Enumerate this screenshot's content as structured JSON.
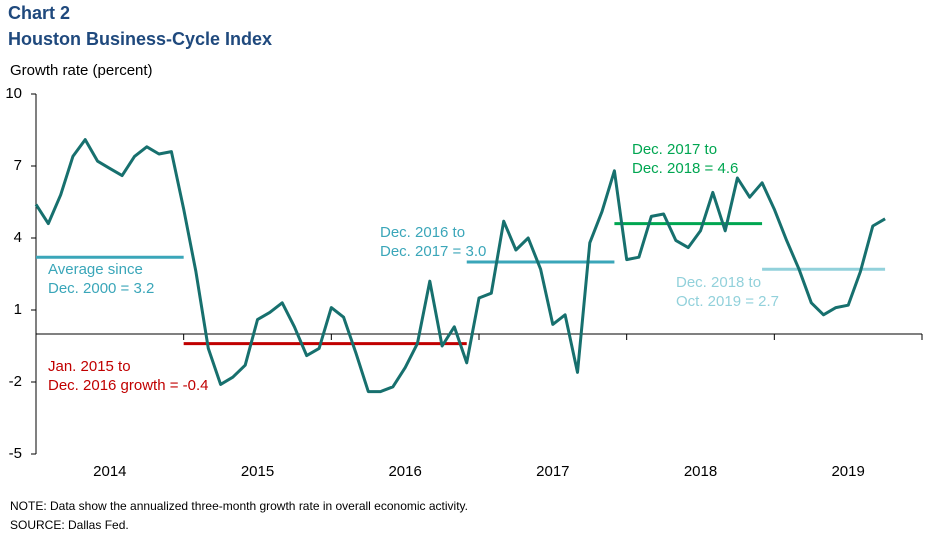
{
  "chart_data": {
    "type": "line",
    "title": "Chart 2",
    "subtitle": "Houston Business-Cycle Index",
    "y_axis_label": "Growth rate (percent)",
    "ylim": [
      -5,
      10
    ],
    "yticks": [
      10,
      7,
      4,
      1,
      -2,
      -5
    ],
    "xlim": [
      2014,
      2020
    ],
    "xticks": [
      {
        "value": 2014.5,
        "label": "2014"
      },
      {
        "value": 2015.5,
        "label": "2015"
      },
      {
        "value": 2016.5,
        "label": "2016"
      },
      {
        "value": 2017.5,
        "label": "2017"
      },
      {
        "value": 2018.5,
        "label": "2018"
      },
      {
        "value": 2019.5,
        "label": "2019"
      }
    ],
    "x": [
      2014,
      2014.083,
      2014.167,
      2014.25,
      2014.333,
      2014.417,
      2014.5,
      2014.583,
      2014.667,
      2014.75,
      2014.833,
      2014.917,
      2015,
      2015.083,
      2015.167,
      2015.25,
      2015.333,
      2015.417,
      2015.5,
      2015.583,
      2015.667,
      2015.75,
      2015.833,
      2015.917,
      2016,
      2016.083,
      2016.167,
      2016.25,
      2016.333,
      2016.417,
      2016.5,
      2016.583,
      2016.667,
      2016.75,
      2016.833,
      2016.917,
      2017,
      2017.083,
      2017.167,
      2017.25,
      2017.333,
      2017.417,
      2017.5,
      2017.583,
      2017.667,
      2017.75,
      2017.833,
      2017.917,
      2018,
      2018.083,
      2018.167,
      2018.25,
      2018.333,
      2018.417,
      2018.5,
      2018.583,
      2018.667,
      2018.75,
      2018.833,
      2018.917,
      2019,
      2019.083,
      2019.167,
      2019.25,
      2019.333,
      2019.417,
      2019.5,
      2019.583,
      2019.667,
      2019.75
    ],
    "series": [
      {
        "color": "#17706e",
        "values": [
          5.4,
          4.6,
          5.8,
          7.4,
          8.1,
          7.2,
          6.9,
          6.6,
          7.4,
          7.8,
          7.5,
          7.6,
          5.2,
          2.6,
          -0.6,
          -2.1,
          -1.8,
          -1.3,
          0.6,
          0.9,
          1.3,
          0.3,
          -0.9,
          -0.6,
          1.1,
          0.7,
          -0.8,
          -2.4,
          -2.4,
          -2.2,
          -1.4,
          -0.4,
          2.2,
          -0.5,
          0.3,
          -1.2,
          1.5,
          1.7,
          4.7,
          3.5,
          4.0,
          2.7,
          0.4,
          0.8,
          -1.6,
          3.8,
          5.1,
          6.8,
          3.1,
          3.2,
          4.9,
          5.0,
          3.9,
          3.6,
          4.3,
          5.9,
          4.3,
          6.5,
          5.7,
          6.3,
          5.2,
          3.9,
          2.7,
          1.3,
          0.8,
          1.1,
          1.2,
          2.6,
          4.5,
          4.8
        ]
      }
    ],
    "segments": [
      {
        "value": 3.2,
        "x": [
          2014,
          2015
        ],
        "color": "#3aa6b9",
        "label": [
          "Average since",
          "Dec. 2000 = 3.2"
        ]
      },
      {
        "value": -0.4,
        "x": [
          2015,
          2016.917
        ],
        "color": "#c00000",
        "label": [
          "Jan. 2015 to",
          "Dec. 2016 growth = -0.4"
        ]
      },
      {
        "value": 3.0,
        "x": [
          2016.917,
          2017.917
        ],
        "color": "#3aa6b9",
        "label": [
          "Dec. 2016 to",
          "Dec. 2017 = 3.0"
        ]
      },
      {
        "value": 4.6,
        "x": [
          2017.917,
          2018.917
        ],
        "color": "#00a651",
        "label": [
          "Dec. 2017 to",
          "Dec. 2018 = 4.6"
        ]
      },
      {
        "value": 2.7,
        "x": [
          2018.917,
          2019.75
        ],
        "color": "#92d1db",
        "label": [
          "Dec. 2018 to",
          "Oct. 2019 = 2.7"
        ]
      }
    ],
    "notes": [
      "NOTE: Data show the annualized three-month growth rate in overall economic activity.",
      "SOURCE: Dallas Fed."
    ]
  }
}
